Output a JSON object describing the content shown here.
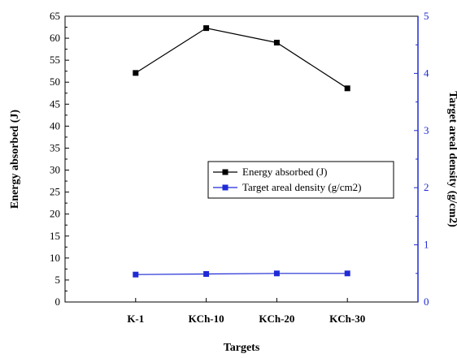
{
  "chart_data": {
    "type": "line",
    "xlabel": "Targets",
    "ylabel": "Energy absorbed (J)",
    "y2label": "Target areal density (g/cm2)",
    "categories": [
      "K-1",
      "KCh-10",
      "KCh-20",
      "KCh-30"
    ],
    "ylim": [
      0,
      65
    ],
    "y2lim": [
      0,
      5
    ],
    "yticks": [
      0,
      5,
      10,
      15,
      20,
      25,
      30,
      35,
      40,
      45,
      50,
      55,
      60,
      65
    ],
    "y2ticks": [
      0,
      1,
      2,
      3,
      4,
      5
    ],
    "legend_position": "center-right",
    "grid": false,
    "series": [
      {
        "name": "Energy absorbed (J)",
        "axis": "left",
        "color": "#000000",
        "marker": "square",
        "values": [
          52.1,
          62.3,
          59.0,
          48.6
        ]
      },
      {
        "name": "Target areal density (g/cm2)",
        "axis": "right",
        "color": "#1f2bd6",
        "marker": "square",
        "values": [
          0.48,
          0.49,
          0.5,
          0.5
        ]
      }
    ]
  }
}
